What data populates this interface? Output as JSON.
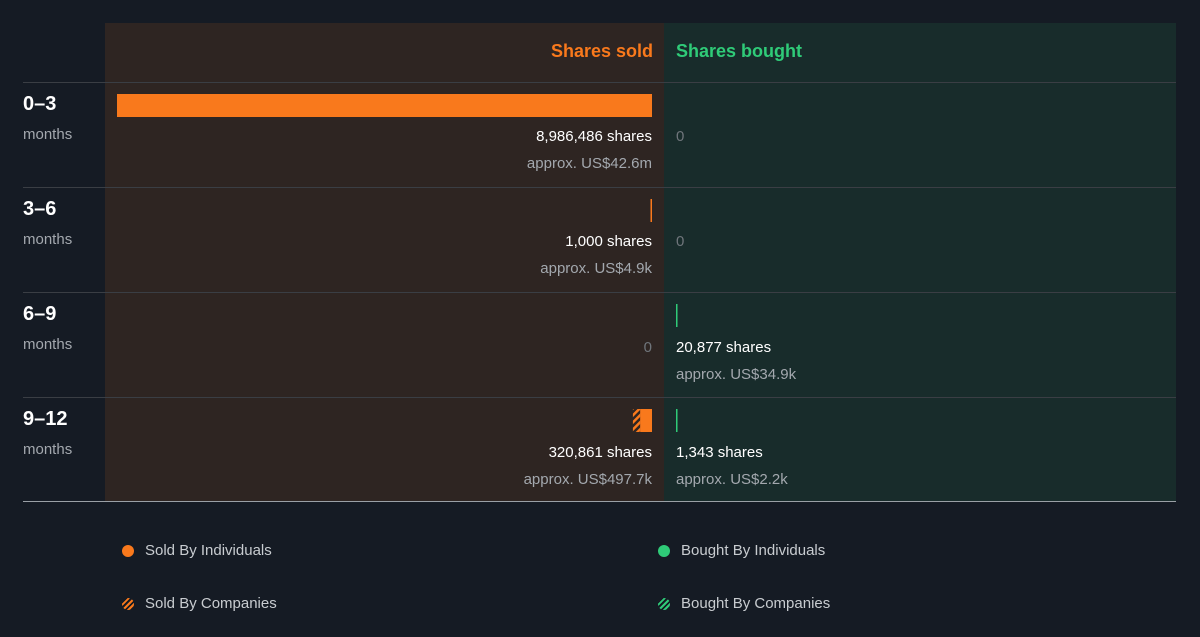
{
  "chart_data": {
    "type": "bar",
    "title": "",
    "columns": {
      "sold": "Shares sold",
      "bought": "Shares bought"
    },
    "categories": [
      {
        "range": "0–3",
        "unit": "months"
      },
      {
        "range": "3–6",
        "unit": "months"
      },
      {
        "range": "6–9",
        "unit": "months"
      },
      {
        "range": "9–12",
        "unit": "months"
      }
    ],
    "sold_max": 8986486,
    "rows": [
      {
        "sold": {
          "individuals": 8986486,
          "companies": 0,
          "label": "8,986,486 shares",
          "approx": "approx. US$42.6m"
        },
        "bought": {
          "individuals": 0,
          "companies": 0,
          "label": "0",
          "approx": ""
        }
      },
      {
        "sold": {
          "individuals": 1000,
          "companies": 0,
          "label": "1,000 shares",
          "approx": "approx. US$4.9k"
        },
        "bought": {
          "individuals": 0,
          "companies": 0,
          "label": "0",
          "approx": ""
        }
      },
      {
        "sold": {
          "individuals": 0,
          "companies": 0,
          "label": "0",
          "approx": ""
        },
        "bought": {
          "individuals": 20877,
          "companies": 0,
          "label": "20,877 shares",
          "approx": "approx. US$34.9k"
        }
      },
      {
        "sold": {
          "individuals": 200000,
          "companies": 120861,
          "label": "320,861 shares",
          "approx": "approx. US$497.7k"
        },
        "bought": {
          "individuals": 1343,
          "companies": 0,
          "label": "1,343 shares",
          "approx": "approx. US$2.2k"
        }
      }
    ],
    "legend": [
      {
        "name": "Sold By Individuals",
        "style": "solid",
        "color": "#f9791c"
      },
      {
        "name": "Bought By Individuals",
        "style": "solid",
        "color": "#2fcb78"
      },
      {
        "name": "Sold By Companies",
        "style": "striped",
        "color": "#f9791c"
      },
      {
        "name": "Bought By Companies",
        "style": "striped",
        "color": "#2fcb78"
      }
    ]
  },
  "colors": {
    "sold": "#f9791c",
    "bought": "#2fcb78"
  }
}
